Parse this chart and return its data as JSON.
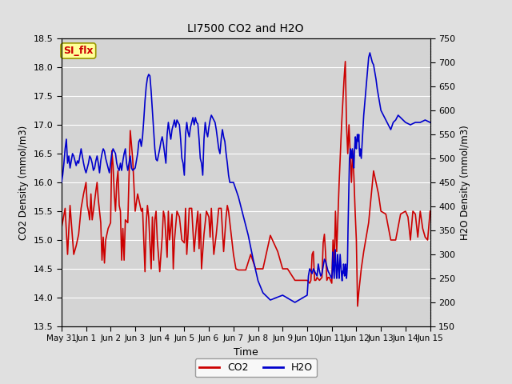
{
  "title": "LI7500 CO2 and H2O",
  "xlabel": "Time",
  "ylabel_left": "CO2 Density (mmol/m3)",
  "ylabel_right": "H2O Density (mmol/m3)",
  "co2_ylim": [
    13.5,
    18.5
  ],
  "h2o_ylim": [
    150,
    750
  ],
  "co2_color": "#cc0000",
  "h2o_color": "#0000cc",
  "fig_facecolor": "#e0e0e0",
  "plot_facecolor": "#d4d4d4",
  "annotation_text": "SI_flx",
  "annotation_bg": "#ffff99",
  "annotation_border": "#999900",
  "legend_co2": "CO2",
  "legend_h2o": "H2O",
  "tick_dates": [
    "May 31",
    "Jun 1",
    "Jun 2",
    "Jun 3",
    "Jun 4",
    "Jun 5",
    "Jun 6",
    "Jun 7",
    "Jun 8",
    "Jun 9",
    "Jun 10",
    "Jun 11",
    "Jun 12",
    "Jun 13",
    "Jun 14",
    "Jun 15"
  ],
  "co2_data": [
    [
      0.0,
      15.2
    ],
    [
      0.15,
      15.55
    ],
    [
      0.25,
      14.75
    ],
    [
      0.35,
      15.6
    ],
    [
      0.5,
      14.75
    ],
    [
      0.6,
      14.9
    ],
    [
      0.7,
      15.1
    ],
    [
      0.8,
      15.55
    ],
    [
      0.9,
      15.8
    ],
    [
      1.0,
      16.0
    ],
    [
      1.05,
      15.6
    ],
    [
      1.1,
      15.5
    ],
    [
      1.15,
      15.35
    ],
    [
      1.2,
      15.8
    ],
    [
      1.25,
      15.35
    ],
    [
      1.3,
      15.5
    ],
    [
      1.4,
      15.85
    ],
    [
      1.45,
      16.0
    ],
    [
      1.5,
      15.7
    ],
    [
      1.6,
      15.3
    ],
    [
      1.65,
      14.65
    ],
    [
      1.7,
      15.05
    ],
    [
      1.75,
      14.6
    ],
    [
      1.8,
      15.0
    ],
    [
      1.9,
      15.2
    ],
    [
      2.0,
      15.3
    ],
    [
      2.05,
      16.55
    ],
    [
      2.1,
      16.3
    ],
    [
      2.15,
      15.8
    ],
    [
      2.2,
      15.5
    ],
    [
      2.25,
      16.0
    ],
    [
      2.3,
      16.2
    ],
    [
      2.35,
      15.6
    ],
    [
      2.4,
      15.5
    ],
    [
      2.45,
      14.65
    ],
    [
      2.5,
      15.2
    ],
    [
      2.55,
      14.65
    ],
    [
      2.6,
      15.35
    ],
    [
      2.7,
      15.3
    ],
    [
      2.8,
      16.9
    ],
    [
      2.9,
      16.4
    ],
    [
      3.0,
      15.5
    ],
    [
      3.1,
      15.8
    ],
    [
      3.2,
      15.6
    ],
    [
      3.25,
      15.5
    ],
    [
      3.3,
      15.55
    ],
    [
      3.4,
      14.45
    ],
    [
      3.45,
      15.3
    ],
    [
      3.5,
      15.6
    ],
    [
      3.55,
      15.4
    ],
    [
      3.65,
      14.5
    ],
    [
      3.7,
      15.4
    ],
    [
      3.75,
      14.65
    ],
    [
      3.8,
      15.35
    ],
    [
      3.85,
      15.5
    ],
    [
      3.9,
      15.0
    ],
    [
      4.0,
      14.45
    ],
    [
      4.1,
      15.05
    ],
    [
      4.15,
      15.5
    ],
    [
      4.2,
      15.4
    ],
    [
      4.3,
      14.7
    ],
    [
      4.35,
      15.5
    ],
    [
      4.4,
      15.0
    ],
    [
      4.5,
      15.45
    ],
    [
      4.55,
      14.5
    ],
    [
      4.6,
      15.0
    ],
    [
      4.7,
      15.5
    ],
    [
      4.8,
      15.4
    ],
    [
      4.9,
      15.0
    ],
    [
      5.0,
      14.95
    ],
    [
      5.05,
      15.55
    ],
    [
      5.1,
      14.75
    ],
    [
      5.15,
      15.1
    ],
    [
      5.2,
      15.55
    ],
    [
      5.3,
      15.55
    ],
    [
      5.4,
      14.8
    ],
    [
      5.5,
      15.3
    ],
    [
      5.55,
      15.5
    ],
    [
      5.6,
      14.85
    ],
    [
      5.65,
      15.45
    ],
    [
      5.7,
      14.5
    ],
    [
      5.8,
      15.1
    ],
    [
      5.9,
      15.5
    ],
    [
      6.0,
      15.4
    ],
    [
      6.05,
      15.05
    ],
    [
      6.1,
      15.55
    ],
    [
      6.2,
      14.75
    ],
    [
      6.3,
      15.1
    ],
    [
      6.4,
      15.55
    ],
    [
      6.5,
      15.55
    ],
    [
      6.6,
      14.8
    ],
    [
      6.7,
      15.4
    ],
    [
      6.75,
      15.6
    ],
    [
      6.8,
      15.5
    ],
    [
      7.0,
      14.75
    ],
    [
      7.1,
      14.5
    ],
    [
      7.2,
      14.48
    ],
    [
      7.5,
      14.48
    ],
    [
      7.7,
      14.75
    ],
    [
      7.9,
      14.5
    ],
    [
      8.0,
      14.5
    ],
    [
      8.2,
      14.5
    ],
    [
      8.5,
      15.08
    ],
    [
      8.8,
      14.8
    ],
    [
      9.0,
      14.5
    ],
    [
      9.2,
      14.5
    ],
    [
      9.5,
      14.3
    ],
    [
      9.8,
      14.3
    ],
    [
      10.0,
      14.3
    ],
    [
      10.1,
      14.25
    ],
    [
      10.15,
      14.3
    ],
    [
      10.2,
      14.75
    ],
    [
      10.25,
      14.8
    ],
    [
      10.3,
      14.3
    ],
    [
      10.35,
      14.3
    ],
    [
      10.4,
      14.35
    ],
    [
      10.5,
      14.3
    ],
    [
      10.6,
      14.35
    ],
    [
      10.65,
      14.95
    ],
    [
      10.7,
      15.1
    ],
    [
      10.75,
      14.75
    ],
    [
      10.8,
      14.3
    ],
    [
      10.85,
      14.35
    ],
    [
      10.9,
      14.35
    ],
    [
      10.95,
      14.3
    ],
    [
      11.0,
      14.25
    ],
    [
      11.05,
      15.0
    ],
    [
      11.1,
      14.6
    ],
    [
      11.15,
      15.5
    ],
    [
      11.2,
      14.8
    ],
    [
      11.3,
      16.0
    ],
    [
      11.4,
      17.0
    ],
    [
      11.5,
      17.8
    ],
    [
      11.55,
      18.1
    ],
    [
      11.6,
      17.0
    ],
    [
      11.65,
      16.5
    ],
    [
      11.7,
      17.0
    ],
    [
      11.75,
      16.5
    ],
    [
      11.8,
      16.0
    ],
    [
      11.85,
      16.55
    ],
    [
      11.9,
      16.1
    ],
    [
      11.95,
      15.5
    ],
    [
      12.0,
      15.0
    ],
    [
      12.05,
      13.85
    ],
    [
      12.1,
      14.1
    ],
    [
      12.2,
      14.5
    ],
    [
      12.3,
      14.8
    ],
    [
      12.5,
      15.3
    ],
    [
      12.7,
      16.2
    ],
    [
      12.9,
      15.8
    ],
    [
      13.0,
      15.5
    ],
    [
      13.2,
      15.45
    ],
    [
      13.4,
      15.0
    ],
    [
      13.6,
      15.0
    ],
    [
      13.8,
      15.45
    ],
    [
      14.0,
      15.5
    ],
    [
      14.1,
      15.4
    ],
    [
      14.2,
      15.0
    ],
    [
      14.3,
      15.5
    ],
    [
      14.4,
      15.45
    ],
    [
      14.5,
      15.05
    ],
    [
      14.6,
      15.5
    ],
    [
      14.7,
      15.2
    ],
    [
      14.8,
      15.05
    ],
    [
      14.9,
      15.0
    ],
    [
      15.0,
      15.5
    ]
  ],
  "h2o_data": [
    [
      0.0,
      450
    ],
    [
      0.05,
      465
    ],
    [
      0.1,
      490
    ],
    [
      0.15,
      520
    ],
    [
      0.2,
      540
    ],
    [
      0.25,
      490
    ],
    [
      0.3,
      505
    ],
    [
      0.35,
      480
    ],
    [
      0.4,
      495
    ],
    [
      0.45,
      510
    ],
    [
      0.5,
      505
    ],
    [
      0.55,
      495
    ],
    [
      0.6,
      485
    ],
    [
      0.65,
      495
    ],
    [
      0.7,
      490
    ],
    [
      0.75,
      505
    ],
    [
      0.8,
      520
    ],
    [
      0.85,
      505
    ],
    [
      0.9,
      490
    ],
    [
      0.95,
      478
    ],
    [
      1.0,
      470
    ],
    [
      1.05,
      480
    ],
    [
      1.1,
      490
    ],
    [
      1.15,
      505
    ],
    [
      1.2,
      500
    ],
    [
      1.25,
      490
    ],
    [
      1.3,
      475
    ],
    [
      1.35,
      480
    ],
    [
      1.4,
      495
    ],
    [
      1.45,
      505
    ],
    [
      1.5,
      490
    ],
    [
      1.55,
      470
    ],
    [
      1.6,
      495
    ],
    [
      1.65,
      510
    ],
    [
      1.7,
      520
    ],
    [
      1.75,
      515
    ],
    [
      1.8,
      500
    ],
    [
      1.85,
      490
    ],
    [
      1.9,
      480
    ],
    [
      1.95,
      470
    ],
    [
      2.0,
      490
    ],
    [
      2.05,
      510
    ],
    [
      2.1,
      520
    ],
    [
      2.15,
      515
    ],
    [
      2.2,
      510
    ],
    [
      2.25,
      490
    ],
    [
      2.3,
      480
    ],
    [
      2.35,
      475
    ],
    [
      2.4,
      490
    ],
    [
      2.45,
      475
    ],
    [
      2.5,
      495
    ],
    [
      2.55,
      510
    ],
    [
      2.6,
      520
    ],
    [
      2.65,
      490
    ],
    [
      2.7,
      475
    ],
    [
      2.75,
      490
    ],
    [
      2.8,
      505
    ],
    [
      2.85,
      480
    ],
    [
      2.9,
      475
    ],
    [
      3.0,
      480
    ],
    [
      3.05,
      495
    ],
    [
      3.1,
      510
    ],
    [
      3.15,
      535
    ],
    [
      3.2,
      540
    ],
    [
      3.25,
      525
    ],
    [
      3.3,
      545
    ],
    [
      3.35,
      580
    ],
    [
      3.4,
      620
    ],
    [
      3.45,
      650
    ],
    [
      3.5,
      668
    ],
    [
      3.55,
      675
    ],
    [
      3.6,
      672
    ],
    [
      3.65,
      640
    ],
    [
      3.7,
      600
    ],
    [
      3.75,
      560
    ],
    [
      3.8,
      520
    ],
    [
      3.85,
      498
    ],
    [
      3.9,
      495
    ],
    [
      4.0,
      520
    ],
    [
      4.05,
      535
    ],
    [
      4.1,
      545
    ],
    [
      4.15,
      530
    ],
    [
      4.2,
      510
    ],
    [
      4.25,
      490
    ],
    [
      4.3,
      550
    ],
    [
      4.35,
      575
    ],
    [
      4.4,
      555
    ],
    [
      4.45,
      540
    ],
    [
      4.5,
      560
    ],
    [
      4.55,
      570
    ],
    [
      4.6,
      580
    ],
    [
      4.65,
      565
    ],
    [
      4.7,
      580
    ],
    [
      4.75,
      575
    ],
    [
      4.8,
      570
    ],
    [
      4.85,
      540
    ],
    [
      4.9,
      500
    ],
    [
      4.95,
      490
    ],
    [
      5.0,
      465
    ],
    [
      5.05,
      550
    ],
    [
      5.1,
      575
    ],
    [
      5.15,
      555
    ],
    [
      5.2,
      545
    ],
    [
      5.25,
      565
    ],
    [
      5.3,
      575
    ],
    [
      5.35,
      585
    ],
    [
      5.4,
      570
    ],
    [
      5.45,
      585
    ],
    [
      5.5,
      575
    ],
    [
      5.55,
      572
    ],
    [
      5.6,
      540
    ],
    [
      5.65,
      500
    ],
    [
      5.7,
      490
    ],
    [
      5.75,
      465
    ],
    [
      5.8,
      540
    ],
    [
      5.85,
      575
    ],
    [
      5.9,
      555
    ],
    [
      5.95,
      545
    ],
    [
      6.0,
      565
    ],
    [
      6.05,
      580
    ],
    [
      6.1,
      590
    ],
    [
      6.15,
      585
    ],
    [
      6.2,
      580
    ],
    [
      6.25,
      575
    ],
    [
      6.3,
      560
    ],
    [
      6.35,
      540
    ],
    [
      6.4,
      520
    ],
    [
      6.45,
      510
    ],
    [
      6.5,
      540
    ],
    [
      6.55,
      560
    ],
    [
      6.6,
      545
    ],
    [
      6.65,
      535
    ],
    [
      6.7,
      510
    ],
    [
      6.75,
      490
    ],
    [
      6.8,
      465
    ],
    [
      6.85,
      450
    ],
    [
      7.0,
      450
    ],
    [
      7.2,
      420
    ],
    [
      7.4,
      380
    ],
    [
      7.6,
      340
    ],
    [
      7.8,
      290
    ],
    [
      8.0,
      245
    ],
    [
      8.2,
      220
    ],
    [
      8.5,
      205
    ],
    [
      9.0,
      215
    ],
    [
      9.5,
      200
    ],
    [
      10.0,
      215
    ],
    [
      10.05,
      255
    ],
    [
      10.1,
      270
    ],
    [
      10.15,
      265
    ],
    [
      10.2,
      260
    ],
    [
      10.25,
      270
    ],
    [
      10.3,
      265
    ],
    [
      10.35,
      260
    ],
    [
      10.4,
      255
    ],
    [
      10.45,
      280
    ],
    [
      10.5,
      265
    ],
    [
      10.55,
      255
    ],
    [
      10.6,
      260
    ],
    [
      10.65,
      275
    ],
    [
      10.7,
      290
    ],
    [
      10.75,
      285
    ],
    [
      10.8,
      275
    ],
    [
      10.85,
      265
    ],
    [
      10.9,
      260
    ],
    [
      10.95,
      255
    ],
    [
      11.0,
      250
    ],
    [
      11.02,
      265
    ],
    [
      11.04,
      305
    ],
    [
      11.06,
      280
    ],
    [
      11.08,
      265
    ],
    [
      11.1,
      250
    ],
    [
      11.12,
      285
    ],
    [
      11.14,
      310
    ],
    [
      11.16,
      290
    ],
    [
      11.18,
      265
    ],
    [
      11.2,
      250
    ],
    [
      11.22,
      270
    ],
    [
      11.24,
      300
    ],
    [
      11.26,
      285
    ],
    [
      11.28,
      265
    ],
    [
      11.3,
      250
    ],
    [
      11.32,
      275
    ],
    [
      11.34,
      300
    ],
    [
      11.36,
      285
    ],
    [
      11.38,
      270
    ],
    [
      11.4,
      255
    ],
    [
      11.42,
      245
    ],
    [
      11.44,
      265
    ],
    [
      11.46,
      260
    ],
    [
      11.48,
      280
    ],
    [
      11.5,
      270
    ],
    [
      11.52,
      255
    ],
    [
      11.54,
      265
    ],
    [
      11.56,
      280
    ],
    [
      11.58,
      265
    ],
    [
      11.6,
      250
    ],
    [
      11.62,
      265
    ],
    [
      11.64,
      285
    ],
    [
      11.66,
      350
    ],
    [
      11.68,
      400
    ],
    [
      11.7,
      450
    ],
    [
      11.72,
      500
    ],
    [
      11.74,
      510
    ],
    [
      11.76,
      520
    ],
    [
      11.78,
      515
    ],
    [
      11.8,
      500
    ],
    [
      11.82,
      510
    ],
    [
      11.84,
      520
    ],
    [
      11.86,
      505
    ],
    [
      11.88,
      490
    ],
    [
      11.9,
      480
    ],
    [
      11.92,
      510
    ],
    [
      11.94,
      530
    ],
    [
      11.96,
      545
    ],
    [
      11.98,
      535
    ],
    [
      12.0,
      520
    ],
    [
      12.02,
      535
    ],
    [
      12.04,
      550
    ],
    [
      12.06,
      545
    ],
    [
      12.08,
      535
    ],
    [
      12.1,
      550
    ],
    [
      12.12,
      520
    ],
    [
      12.14,
      505
    ],
    [
      12.16,
      520
    ],
    [
      12.18,
      510
    ],
    [
      12.2,
      500
    ],
    [
      12.3,
      590
    ],
    [
      12.35,
      620
    ],
    [
      12.4,
      650
    ],
    [
      12.45,
      680
    ],
    [
      12.5,
      710
    ],
    [
      12.55,
      720
    ],
    [
      12.6,
      710
    ],
    [
      12.65,
      700
    ],
    [
      12.7,
      695
    ],
    [
      12.75,
      680
    ],
    [
      12.8,
      665
    ],
    [
      12.85,
      645
    ],
    [
      12.9,
      630
    ],
    [
      12.95,
      615
    ],
    [
      13.0,
      600
    ],
    [
      13.1,
      590
    ],
    [
      13.2,
      580
    ],
    [
      13.3,
      570
    ],
    [
      13.4,
      560
    ],
    [
      13.5,
      575
    ],
    [
      13.6,
      580
    ],
    [
      13.7,
      590
    ],
    [
      13.8,
      585
    ],
    [
      13.9,
      580
    ],
    [
      14.0,
      575
    ],
    [
      14.2,
      570
    ],
    [
      14.4,
      575
    ],
    [
      14.6,
      575
    ],
    [
      14.8,
      580
    ],
    [
      15.0,
      575
    ]
  ]
}
